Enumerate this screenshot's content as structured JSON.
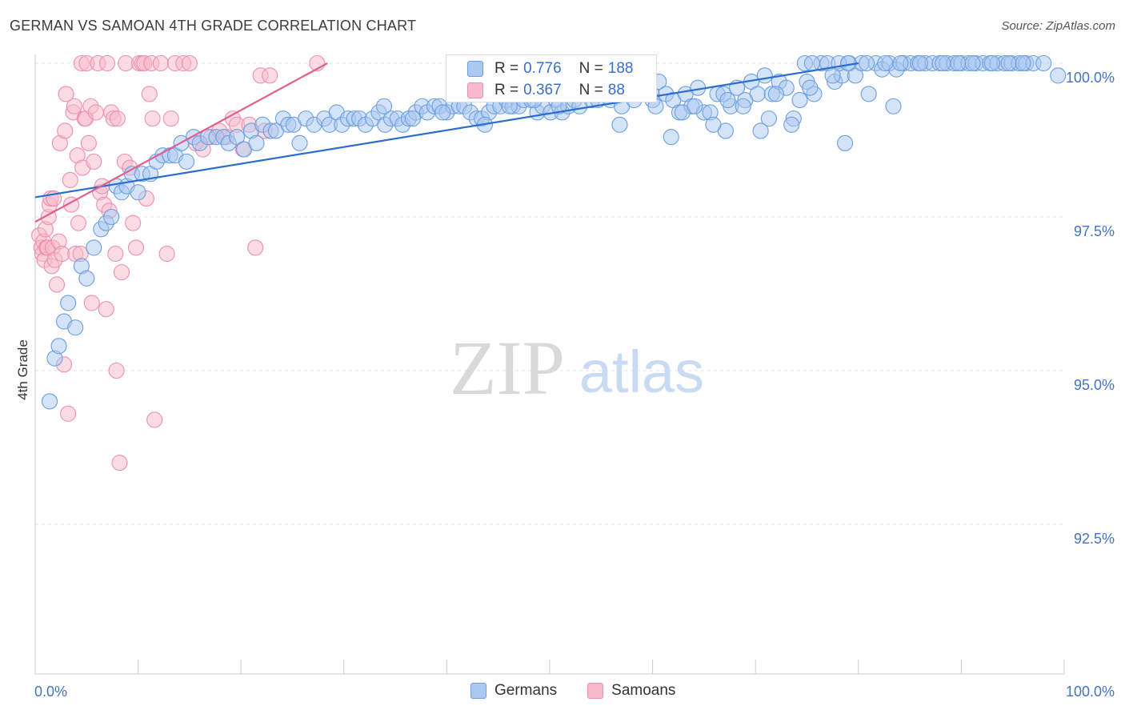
{
  "title": "GERMAN VS SAMOAN 4TH GRADE CORRELATION CHART",
  "source": "Source: ZipAtlas.com",
  "colors": {
    "german_fill": "#aac8f0",
    "german_stroke": "#6a9fe0",
    "german_line": "#2a6fd0",
    "samoan_fill": "#f8b9cc",
    "samoan_stroke": "#ec8fae",
    "samoan_line": "#e0608e",
    "axis_label": "#4472c4",
    "grid": "#e3e3e3"
  },
  "stats": {
    "german": {
      "r_label": "R =",
      "r_value": "0.776",
      "n_label": "N =",
      "n_value": "188"
    },
    "samoan": {
      "r_label": "R =",
      "r_value": "0.367",
      "n_label": "N =",
      "n_value": "88"
    }
  },
  "chart_data": {
    "type": "scatter",
    "title": "GERMAN VS SAMOAN 4TH GRADE CORRELATION CHART",
    "xlabel": "",
    "ylabel": "4th Grade",
    "xlim": [
      0,
      100
    ],
    "ylim": [
      90.0,
      100.2
    ],
    "x_tick_labels": {
      "left": "0.0%",
      "right": "100.0%"
    },
    "y_ticks": [
      {
        "value": 100.0,
        "label": "100.0%"
      },
      {
        "value": 97.5,
        "label": "97.5%"
      },
      {
        "value": 95.0,
        "label": "95.0%"
      },
      {
        "value": 92.5,
        "label": "92.5%"
      }
    ],
    "watermark": {
      "zip": "ZIP",
      "atlas": "atlas"
    },
    "legend": [
      "Germans",
      "Samoans"
    ],
    "series": [
      {
        "name": "Germans",
        "trend": {
          "x0": 0,
          "y0": 97.82,
          "x1": 80,
          "y1": 100.0
        },
        "points": [
          [
            1.4,
            94.5
          ],
          [
            1.9,
            95.2
          ],
          [
            2.3,
            95.4
          ],
          [
            2.8,
            95.8
          ],
          [
            3.2,
            96.1
          ],
          [
            3.9,
            95.7
          ],
          [
            4.5,
            96.7
          ],
          [
            5.0,
            96.5
          ],
          [
            5.7,
            97.0
          ],
          [
            6.4,
            97.3
          ],
          [
            6.9,
            97.4
          ],
          [
            7.4,
            97.5
          ],
          [
            7.9,
            98.0
          ],
          [
            8.4,
            97.9
          ],
          [
            8.9,
            98.0
          ],
          [
            9.4,
            98.2
          ],
          [
            10.0,
            97.9
          ],
          [
            10.4,
            98.2
          ],
          [
            11.2,
            98.2
          ],
          [
            11.8,
            98.4
          ],
          [
            12.4,
            98.5
          ],
          [
            13.1,
            98.5
          ],
          [
            13.6,
            98.5
          ],
          [
            14.2,
            98.7
          ],
          [
            14.7,
            98.4
          ],
          [
            15.4,
            98.8
          ],
          [
            16.0,
            98.7
          ],
          [
            16.8,
            98.8
          ],
          [
            17.6,
            98.8
          ],
          [
            18.3,
            98.8
          ],
          [
            18.8,
            98.7
          ],
          [
            19.6,
            98.8
          ],
          [
            20.3,
            98.6
          ],
          [
            21.0,
            98.9
          ],
          [
            21.5,
            98.7
          ],
          [
            22.1,
            99.0
          ],
          [
            22.9,
            98.9
          ],
          [
            23.4,
            98.9
          ],
          [
            24.1,
            99.1
          ],
          [
            24.6,
            99.0
          ],
          [
            25.1,
            99.0
          ],
          [
            25.7,
            98.7
          ],
          [
            26.3,
            99.1
          ],
          [
            27.1,
            99.0
          ],
          [
            28.1,
            99.1
          ],
          [
            28.6,
            99.0
          ],
          [
            29.3,
            99.2
          ],
          [
            29.8,
            99.0
          ],
          [
            30.4,
            99.1
          ],
          [
            31.0,
            99.1
          ],
          [
            31.5,
            99.1
          ],
          [
            32.1,
            99.0
          ],
          [
            32.8,
            99.1
          ],
          [
            33.4,
            99.2
          ],
          [
            34.0,
            99.0
          ],
          [
            34.6,
            99.1
          ],
          [
            35.2,
            99.1
          ],
          [
            35.7,
            99.0
          ],
          [
            36.3,
            99.1
          ],
          [
            37.0,
            99.2
          ],
          [
            37.6,
            99.3
          ],
          [
            38.1,
            99.2
          ],
          [
            38.8,
            99.3
          ],
          [
            39.3,
            99.3
          ],
          [
            40.0,
            99.2
          ],
          [
            40.6,
            99.3
          ],
          [
            41.2,
            99.3
          ],
          [
            41.7,
            99.3
          ],
          [
            42.3,
            99.2
          ],
          [
            42.9,
            99.1
          ],
          [
            43.4,
            99.1
          ],
          [
            44.1,
            99.2
          ],
          [
            44.6,
            99.3
          ],
          [
            45.2,
            99.3
          ],
          [
            45.8,
            99.4
          ],
          [
            46.4,
            99.3
          ],
          [
            47.0,
            99.3
          ],
          [
            47.5,
            99.4
          ],
          [
            48.2,
            99.4
          ],
          [
            48.8,
            99.2
          ],
          [
            49.3,
            99.3
          ],
          [
            50.1,
            99.2
          ],
          [
            50.6,
            99.4
          ],
          [
            51.2,
            99.2
          ],
          [
            51.8,
            99.3
          ],
          [
            52.4,
            99.4
          ],
          [
            52.9,
            99.3
          ],
          [
            53.5,
            99.5
          ],
          [
            54.1,
            99.4
          ],
          [
            54.7,
            99.4
          ],
          [
            55.2,
            99.5
          ],
          [
            55.9,
            99.4
          ],
          [
            56.5,
            99.6
          ],
          [
            57.0,
            99.3
          ],
          [
            57.6,
            99.6
          ],
          [
            58.2,
            99.4
          ],
          [
            58.8,
            99.5
          ],
          [
            59.4,
            99.6
          ],
          [
            60.0,
            99.4
          ],
          [
            60.6,
            99.7
          ],
          [
            61.3,
            99.5
          ],
          [
            62.0,
            99.4
          ],
          [
            62.6,
            99.2
          ],
          [
            63.2,
            99.5
          ],
          [
            63.8,
            99.3
          ],
          [
            64.4,
            99.6
          ],
          [
            65.0,
            99.2
          ],
          [
            65.6,
            99.2
          ],
          [
            66.3,
            99.5
          ],
          [
            66.9,
            99.5
          ],
          [
            67.6,
            99.3
          ],
          [
            68.2,
            99.6
          ],
          [
            69.0,
            99.4
          ],
          [
            69.6,
            99.7
          ],
          [
            70.2,
            99.5
          ],
          [
            70.9,
            99.8
          ],
          [
            71.6,
            99.5
          ],
          [
            72.3,
            99.7
          ],
          [
            73.0,
            99.6
          ],
          [
            73.7,
            99.1
          ],
          [
            74.3,
            99.4
          ],
          [
            75.0,
            99.7
          ],
          [
            75.7,
            99.5
          ],
          [
            76.4,
            100.0
          ],
          [
            77.0,
            100.0
          ],
          [
            77.7,
            99.7
          ],
          [
            78.4,
            99.8
          ],
          [
            79.1,
            100.0
          ],
          [
            79.7,
            99.8
          ],
          [
            80.3,
            100.0
          ],
          [
            81.0,
            99.5
          ],
          [
            81.7,
            100.0
          ],
          [
            82.3,
            99.9
          ],
          [
            83.0,
            100.0
          ],
          [
            83.7,
            99.9
          ],
          [
            84.4,
            100.0
          ],
          [
            85.1,
            100.0
          ],
          [
            85.8,
            100.0
          ],
          [
            86.5,
            100.0
          ],
          [
            87.2,
            100.0
          ],
          [
            87.9,
            100.0
          ],
          [
            88.6,
            100.0
          ],
          [
            89.3,
            100.0
          ],
          [
            90.0,
            100.0
          ],
          [
            90.7,
            100.0
          ],
          [
            91.4,
            100.0
          ],
          [
            92.1,
            100.0
          ],
          [
            92.8,
            100.0
          ],
          [
            93.5,
            100.0
          ],
          [
            94.2,
            100.0
          ],
          [
            94.9,
            100.0
          ],
          [
            95.6,
            100.0
          ],
          [
            96.3,
            100.0
          ],
          [
            97.0,
            100.0
          ],
          [
            98.0,
            100.0
          ],
          [
            99.4,
            99.8
          ],
          [
            74.8,
            100.0
          ],
          [
            75.5,
            100.0
          ],
          [
            78.1,
            100.0
          ],
          [
            79.0,
            100.0
          ],
          [
            80.8,
            100.0
          ],
          [
            82.6,
            100.0
          ],
          [
            84.1,
            100.0
          ],
          [
            86.0,
            100.0
          ],
          [
            88.2,
            100.0
          ],
          [
            89.7,
            100.0
          ],
          [
            91.1,
            100.0
          ],
          [
            93.0,
            100.0
          ],
          [
            94.6,
            100.0
          ],
          [
            96.0,
            100.0
          ],
          [
            61.8,
            98.8
          ],
          [
            67.1,
            98.9
          ],
          [
            78.7,
            98.7
          ],
          [
            71.3,
            99.1
          ],
          [
            70.5,
            98.9
          ],
          [
            73.5,
            99.0
          ],
          [
            56.8,
            99.0
          ],
          [
            59.9,
            99.5
          ],
          [
            62.9,
            99.2
          ],
          [
            65.9,
            99.0
          ],
          [
            68.8,
            99.3
          ],
          [
            72.0,
            99.5
          ],
          [
            75.3,
            99.6
          ],
          [
            77.5,
            99.8
          ],
          [
            83.4,
            99.3
          ],
          [
            53.0,
            99.6
          ],
          [
            55.5,
            99.6
          ],
          [
            58.5,
            99.7
          ],
          [
            60.3,
            99.3
          ],
          [
            64.1,
            99.3
          ],
          [
            67.3,
            99.4
          ],
          [
            50.9,
            99.3
          ],
          [
            48.5,
            99.4
          ],
          [
            46.1,
            99.3
          ],
          [
            43.7,
            99.0
          ],
          [
            39.6,
            99.2
          ],
          [
            36.7,
            99.1
          ],
          [
            33.9,
            99.3
          ]
        ]
      },
      {
        "name": "Samoans",
        "trend": {
          "x0": 0,
          "y0": 97.42,
          "x1": 28.4,
          "y1": 100.0
        },
        "points": [
          [
            0.4,
            97.2
          ],
          [
            0.6,
            97.0
          ],
          [
            0.7,
            96.9
          ],
          [
            0.8,
            97.1
          ],
          [
            0.9,
            96.8
          ],
          [
            1.0,
            97.3
          ],
          [
            1.1,
            97.0
          ],
          [
            1.2,
            97.0
          ],
          [
            1.3,
            97.5
          ],
          [
            1.4,
            97.7
          ],
          [
            1.5,
            97.8
          ],
          [
            1.6,
            96.7
          ],
          [
            1.7,
            97.0
          ],
          [
            1.8,
            97.8
          ],
          [
            1.9,
            96.8
          ],
          [
            2.1,
            96.4
          ],
          [
            2.3,
            97.1
          ],
          [
            2.4,
            98.7
          ],
          [
            2.6,
            96.9
          ],
          [
            2.8,
            95.1
          ],
          [
            2.9,
            98.9
          ],
          [
            3.0,
            99.5
          ],
          [
            3.2,
            94.3
          ],
          [
            3.4,
            98.1
          ],
          [
            3.5,
            97.7
          ],
          [
            3.7,
            99.2
          ],
          [
            3.8,
            99.3
          ],
          [
            3.9,
            96.9
          ],
          [
            4.1,
            98.5
          ],
          [
            4.2,
            97.4
          ],
          [
            4.4,
            96.9
          ],
          [
            4.5,
            100.0
          ],
          [
            4.6,
            98.3
          ],
          [
            4.8,
            99.1
          ],
          [
            4.9,
            99.1
          ],
          [
            5.0,
            100.0
          ],
          [
            5.2,
            98.7
          ],
          [
            5.4,
            99.3
          ],
          [
            5.5,
            96.1
          ],
          [
            5.7,
            98.4
          ],
          [
            5.9,
            99.2
          ],
          [
            6.1,
            100.0
          ],
          [
            6.3,
            97.9
          ],
          [
            6.5,
            98.0
          ],
          [
            6.7,
            97.7
          ],
          [
            6.9,
            96.0
          ],
          [
            7.0,
            100.0
          ],
          [
            7.2,
            97.6
          ],
          [
            7.4,
            99.2
          ],
          [
            7.6,
            99.1
          ],
          [
            7.8,
            96.9
          ],
          [
            7.9,
            95.0
          ],
          [
            8.0,
            99.1
          ],
          [
            8.2,
            93.5
          ],
          [
            8.4,
            96.6
          ],
          [
            8.7,
            98.4
          ],
          [
            8.8,
            100.0
          ],
          [
            9.2,
            98.3
          ],
          [
            9.5,
            97.4
          ],
          [
            9.8,
            97.0
          ],
          [
            10.1,
            100.0
          ],
          [
            10.4,
            100.0
          ],
          [
            10.6,
            100.0
          ],
          [
            10.8,
            97.8
          ],
          [
            11.1,
            99.5
          ],
          [
            11.3,
            100.0
          ],
          [
            11.4,
            99.1
          ],
          [
            11.6,
            94.2
          ],
          [
            12.2,
            100.0
          ],
          [
            12.8,
            96.9
          ],
          [
            13.2,
            99.1
          ],
          [
            13.6,
            100.0
          ],
          [
            14.4,
            100.0
          ],
          [
            15.0,
            100.0
          ],
          [
            15.6,
            98.7
          ],
          [
            16.3,
            98.6
          ],
          [
            17.1,
            98.8
          ],
          [
            17.9,
            98.9
          ],
          [
            18.6,
            98.8
          ],
          [
            19.2,
            99.1
          ],
          [
            19.6,
            99.0
          ],
          [
            20.2,
            98.6
          ],
          [
            20.8,
            99.0
          ],
          [
            21.4,
            97.0
          ],
          [
            21.9,
            99.8
          ],
          [
            22.3,
            98.9
          ],
          [
            22.8,
            99.8
          ],
          [
            27.4,
            100.0
          ]
        ]
      }
    ]
  }
}
